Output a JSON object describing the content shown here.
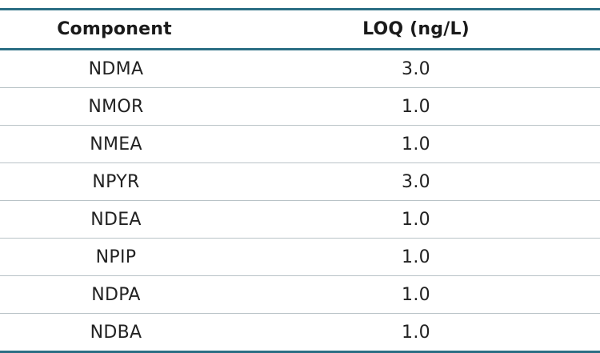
{
  "table": {
    "headers": [
      "Component",
      "LOQ (ng/L)"
    ],
    "rows": [
      {
        "component": "NDMA",
        "loq": "3.0"
      },
      {
        "component": "NMOR",
        "loq": "1.0"
      },
      {
        "component": "NMEA",
        "loq": "1.0"
      },
      {
        "component": "NPYR",
        "loq": "3.0"
      },
      {
        "component": "NDEA",
        "loq": "1.0"
      },
      {
        "component": "NPIP",
        "loq": "1.0"
      },
      {
        "component": "NDPA",
        "loq": "1.0"
      },
      {
        "component": "NDBA",
        "loq": "1.0"
      }
    ],
    "colors": {
      "rule": "#2b6e84",
      "row_divider": "#b9c3c7",
      "text": "#222222"
    }
  }
}
